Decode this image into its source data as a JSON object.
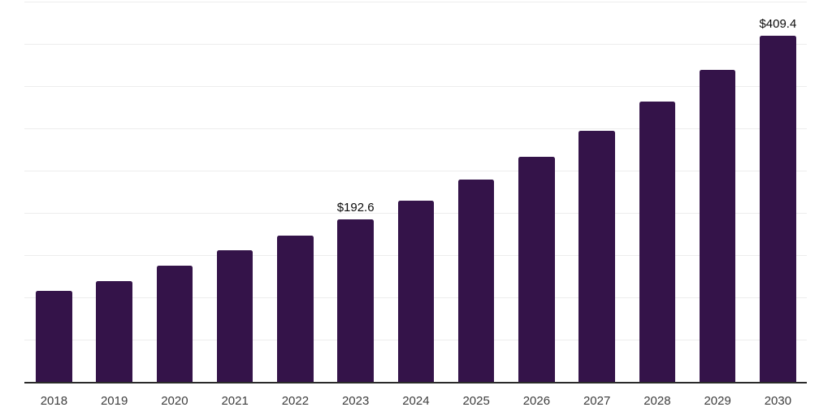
{
  "chart_data": {
    "type": "bar",
    "title": "",
    "xlabel": "",
    "ylabel": "",
    "categories": [
      "2018",
      "2019",
      "2020",
      "2021",
      "2022",
      "2023",
      "2024",
      "2025",
      "2026",
      "2027",
      "2028",
      "2029",
      "2030"
    ],
    "values": [
      107.4,
      119.2,
      137.8,
      155.4,
      173.0,
      192.6,
      214.7,
      239.3,
      266.7,
      297.2,
      331.3,
      369.2,
      409.4
    ],
    "data_labels": [
      "",
      "",
      "",
      "",
      "",
      "$192.6",
      "",
      "",
      "",
      "",
      "",
      "",
      "$409.4"
    ],
    "value_prefix": "$",
    "ylim": [
      0,
      450
    ],
    "grid_interval": 50,
    "gridlines": "horizontal",
    "legend": "none",
    "y_axis_labels": "none"
  },
  "colors": {
    "bar": "#341349",
    "grid": "#ededed",
    "axis": "#2a2a2a",
    "tick_label": "#3d3d3d",
    "data_label": "#0a0a0a",
    "background": "#ffffff"
  }
}
